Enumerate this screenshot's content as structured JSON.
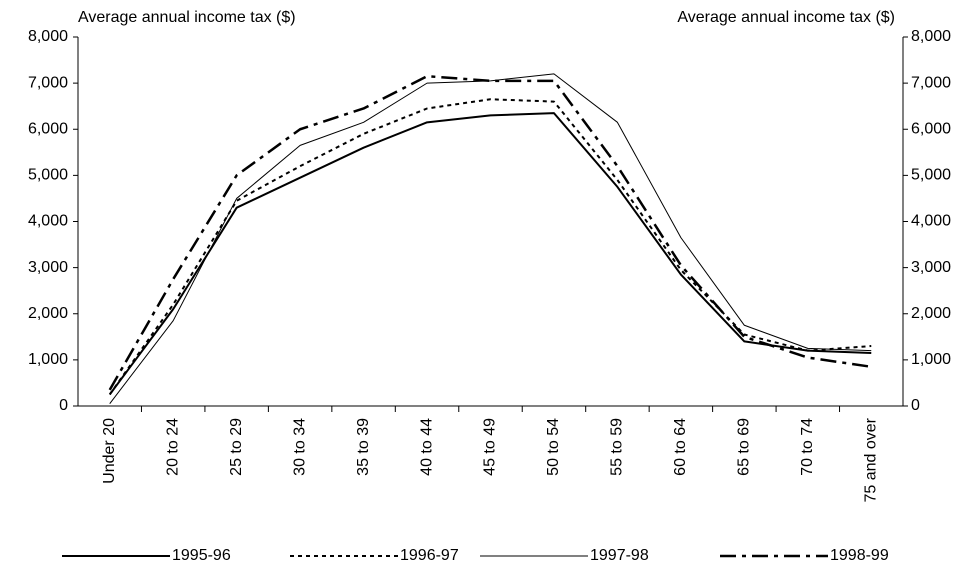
{
  "chart_data": {
    "type": "line",
    "y_label": "Average annual income tax ($)",
    "y2_label": "Average annual income tax ($)",
    "categories": [
      "Under 20",
      "20 to 24",
      "25 to 29",
      "30 to 34",
      "35 to 39",
      "40 to 44",
      "45 to 49",
      "50 to 54",
      "55 to 59",
      "60 to 64",
      "65 to 69",
      "70 to 74",
      "75 and over"
    ],
    "series": [
      {
        "name": "1995-96",
        "color": "#000000",
        "line_style": "solid",
        "values": [
          250,
          2100,
          4300,
          4950,
          5600,
          6150,
          6300,
          6350,
          4750,
          2850,
          1400,
          1200,
          1150
        ]
      },
      {
        "name": "1996-97",
        "color": "#000000",
        "line_style": "dotted",
        "values": [
          250,
          2200,
          4450,
          5200,
          5900,
          6450,
          6650,
          6600,
          4900,
          2950,
          1550,
          1200,
          1300
        ]
      },
      {
        "name": "1997-98",
        "color": "#000000",
        "line_style": "thin",
        "values": [
          50,
          1850,
          4500,
          5650,
          6150,
          7000,
          7050,
          7200,
          6150,
          3650,
          1750,
          1250,
          1200
        ]
      },
      {
        "name": "1998-99",
        "color": "#000000",
        "line_style": "dash-dot",
        "values": [
          350,
          2750,
          5000,
          6000,
          6450,
          7150,
          7050,
          7050,
          5200,
          3050,
          1500,
          1050,
          850
        ]
      }
    ],
    "ylim": [
      0,
      8000
    ],
    "yticks": [
      0,
      {
        "value": 1000,
        "label": "1,000"
      },
      {
        "value": 2000,
        "label": "2,000"
      },
      {
        "value": 3000,
        "label": "3,000"
      },
      {
        "value": 4000,
        "label": "4,000"
      },
      {
        "value": 5000,
        "label": "5,000"
      },
      {
        "value": 6000,
        "label": "6,000"
      },
      {
        "value": 7000,
        "label": "7,000"
      },
      {
        "value": 8000,
        "label": "8,000"
      }
    ],
    "y2lim": [
      0,
      8000
    ],
    "y2ticks": [
      0,
      {
        "value": 1000,
        "label": "1,000"
      },
      {
        "value": 2000,
        "label": "2,000"
      },
      {
        "value": 3000,
        "label": "3,000"
      },
      {
        "value": 4000,
        "label": "4,000"
      },
      {
        "value": 5000,
        "label": "5,000"
      },
      {
        "value": 6000,
        "label": "6,000"
      },
      {
        "value": 7000,
        "label": "7,000"
      },
      {
        "value": 8000,
        "label": "8,000"
      }
    ],
    "legend": "bottom"
  }
}
